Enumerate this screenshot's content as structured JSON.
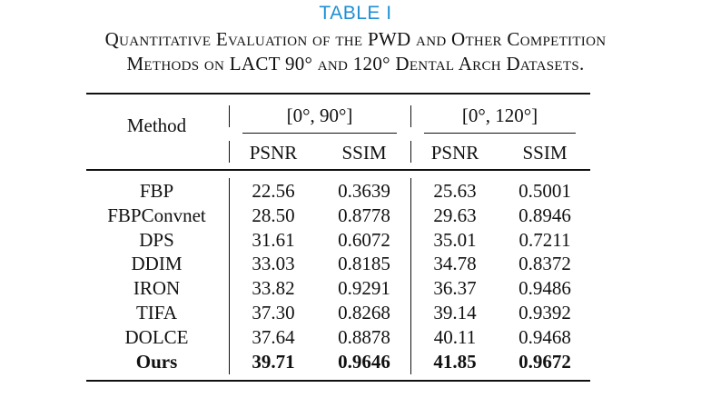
{
  "table_label": "TABLE I",
  "caption": {
    "line1": "Quantitative Evaluation of the PWD and Other Competition",
    "line2": "Methods on LACT 90° and 120° Dental Arch Datasets."
  },
  "header": {
    "method": "Method",
    "group_90": "[0°, 90°]",
    "group_120": "[0°, 120°]",
    "psnr": "PSNR",
    "ssim": "SSIM"
  },
  "rows": [
    {
      "method": "FBP",
      "psnr_90": "22.56",
      "ssim_90": "0.3639",
      "psnr_120": "25.63",
      "ssim_120": "0.5001"
    },
    {
      "method": "FBPConvnet",
      "psnr_90": "28.50",
      "ssim_90": "0.8778",
      "psnr_120": "29.63",
      "ssim_120": "0.8946"
    },
    {
      "method": "DPS",
      "psnr_90": "31.61",
      "ssim_90": "0.6072",
      "psnr_120": "35.01",
      "ssim_120": "0.7211"
    },
    {
      "method": "DDIM",
      "psnr_90": "33.03",
      "ssim_90": "0.8185",
      "psnr_120": "34.78",
      "ssim_120": "0.8372"
    },
    {
      "method": "IRON",
      "psnr_90": "33.82",
      "ssim_90": "0.9291",
      "psnr_120": "36.37",
      "ssim_120": "0.9486"
    },
    {
      "method": "TIFA",
      "psnr_90": "37.30",
      "ssim_90": "0.8268",
      "psnr_120": "39.14",
      "ssim_120": "0.9392"
    },
    {
      "method": "DOLCE",
      "psnr_90": "37.64",
      "ssim_90": "0.8878",
      "psnr_120": "40.11",
      "ssim_120": "0.9468"
    },
    {
      "method": "Ours",
      "psnr_90": "39.71",
      "ssim_90": "0.9646",
      "psnr_120": "41.85",
      "ssim_120": "0.9672",
      "bold": true
    }
  ]
}
